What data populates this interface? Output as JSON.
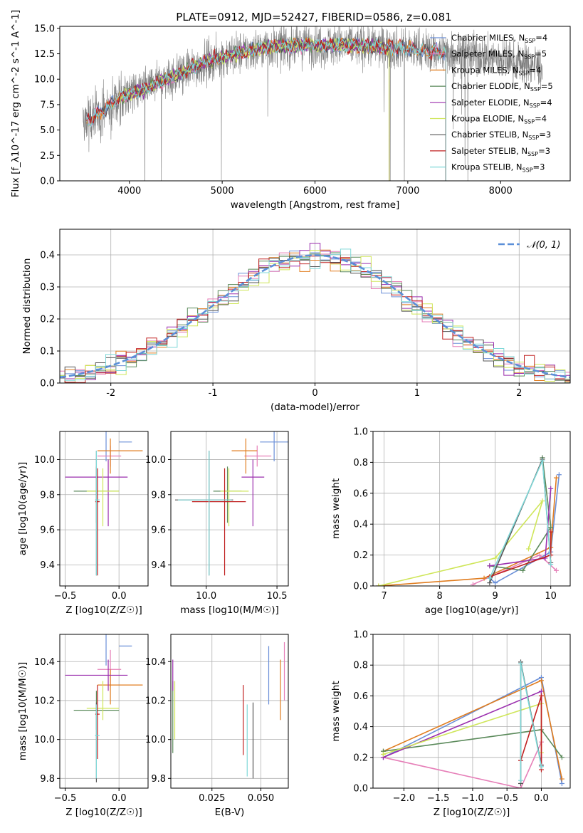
{
  "title": "PLATE=0912, MJD=52427, FIBERID=0586, z=0.081",
  "colors": {
    "chabrier_miles": "#6a8fd8",
    "salpeter_miles": "#e67fb8",
    "kroupa_miles": "#e07c1e",
    "chabrier_elodie": "#5b8a5b",
    "salpeter_elodie": "#9b2fae",
    "kroupa_elodie": "#cfe65a",
    "chabrier_stelib": "#555555",
    "salpeter_stelib": "#c02020",
    "kroupa_stelib": "#7fd8d8",
    "data": "#808080",
    "gauss": "#5b8fd8"
  },
  "chart_data": [
    {
      "id": "spectrum",
      "type": "line",
      "title": "PLATE=0912, MJD=52427, FIBERID=0586, z=0.081",
      "xlabel": "wavelength [Angstrom, rest frame]",
      "ylabel": "Flux [f_λ10^-17 erg cm^-2 s^-1 A^-1]",
      "xlim": [
        3250,
        8750
      ],
      "ylim": [
        0,
        15.2
      ],
      "xticks": [
        "4000",
        "5000",
        "6000",
        "7000",
        "8000"
      ],
      "yticks": [
        "0.0",
        "2.5",
        "5.0",
        "7.5",
        "10.0",
        "12.5",
        "15.0"
      ],
      "legend_position": "top-right",
      "legend": [
        {
          "label": "Chabrier MILES, N_SSP=4",
          "key": "chabrier_miles"
        },
        {
          "label": "Salpeter MILES, N_SSP=5",
          "key": "salpeter_miles"
        },
        {
          "label": "Kroupa MILES, N_SSP=4",
          "key": "kroupa_miles"
        },
        {
          "label": "Chabrier ELODIE, N_SSP=5",
          "key": "chabrier_elodie"
        },
        {
          "label": "Salpeter ELODIE, N_SSP=4",
          "key": "salpeter_elodie"
        },
        {
          "label": "Kroupa ELODIE, N_SSP=4",
          "key": "kroupa_elodie"
        },
        {
          "label": "Chabrier STELIB, N_SSP=3",
          "key": "chabrier_stelib"
        },
        {
          "label": "Salpeter STELIB, N_SSP=3",
          "key": "salpeter_stelib"
        },
        {
          "label": "Kroupa STELIB, N_SSP=3",
          "key": "kroupa_stelib"
        }
      ],
      "data_range": [
        3500,
        8450
      ],
      "continuum": [
        [
          3500,
          5.6
        ],
        [
          3700,
          6.8
        ],
        [
          3900,
          8.2
        ],
        [
          4100,
          8.8
        ],
        [
          4300,
          9.6
        ],
        [
          4500,
          10.4
        ],
        [
          4800,
          11.6
        ],
        [
          5100,
          12.4
        ],
        [
          5500,
          13.2
        ],
        [
          6000,
          13.4
        ],
        [
          6500,
          13.3
        ],
        [
          7000,
          13.0
        ],
        [
          7500,
          12.6
        ],
        [
          8000,
          12.0
        ],
        [
          8450,
          11.2
        ]
      ],
      "model_ranges": {
        "miles": [
          3540,
          7410
        ],
        "elodie": [
          3900,
          6800
        ],
        "stelib": [
          3540,
          7410
        ]
      }
    },
    {
      "id": "residuals",
      "type": "line",
      "xlabel": "(data-model)/error",
      "ylabel": "Normed distribution",
      "xlim": [
        -2.5,
        2.5
      ],
      "ylim": [
        0,
        0.48
      ],
      "xticks": [
        -2,
        -1,
        0,
        1,
        2
      ],
      "yticks": [
        "0.0",
        "0.1",
        "0.2",
        "0.3",
        "0.4"
      ],
      "gauss_label": "𝒩(0, 1)",
      "legend_position": "top-right"
    },
    {
      "id": "age_vs_Z",
      "type": "scatter",
      "xlabel": "Z [log10(Z/Z☉)]",
      "ylabel": "age  [log10(age/yr)]",
      "xlim": [
        -0.55,
        0.27
      ],
      "ylim": [
        9.28,
        10.16
      ],
      "xticks": [
        "−0.5",
        "0.0"
      ],
      "yticks": [
        "9.4",
        "9.6",
        "9.8",
        "10.0"
      ]
    },
    {
      "id": "age_vs_mass",
      "type": "scatter",
      "xlabel": "mass [log10(M/M☉)]",
      "ylabel": "",
      "xlim": [
        9.75,
        10.58
      ],
      "ylim": [
        9.28,
        10.16
      ],
      "xticks": [
        "10.0",
        "10.5"
      ],
      "yticks": [
        "9.4",
        "9.6",
        "9.8",
        "10.0"
      ]
    },
    {
      "id": "weight_vs_age",
      "type": "line",
      "xlabel": "age  [log10(age/yr)]",
      "ylabel": "mass weight",
      "xlim": [
        6.8,
        10.35
      ],
      "ylim": [
        0,
        1.0
      ],
      "xticks": [
        "7",
        "8",
        "9",
        "10"
      ],
      "yticks": [
        "0.0",
        "0.2",
        "0.4",
        "0.6",
        "0.8",
        "1.0"
      ]
    },
    {
      "id": "mass_vs_Z",
      "type": "scatter",
      "xlabel": "Z [log10(Z/Z☉)]",
      "ylabel": "mass [log10(M/M☉)]",
      "xlim": [
        -0.55,
        0.27
      ],
      "ylim": [
        9.75,
        10.54
      ],
      "xticks": [
        "−0.5",
        "0.0"
      ],
      "yticks": [
        "9.8",
        "10.0",
        "10.2",
        "10.4"
      ]
    },
    {
      "id": "mass_vs_ebv",
      "type": "scatter",
      "xlabel": "E(B-V)",
      "ylabel": "",
      "xlim": [
        0.004,
        0.064
      ],
      "ylim": [
        9.75,
        10.54
      ],
      "xticks": [
        "0.025",
        "0.050"
      ],
      "yticks": [
        "9.8",
        "10.0",
        "10.2",
        "10.4"
      ]
    },
    {
      "id": "weight_vs_Z",
      "type": "line",
      "xlabel": "Z [log10(Z/Z☉)]",
      "ylabel": "mass weight",
      "xlim": [
        -2.45,
        0.42
      ],
      "ylim": [
        0,
        1.0
      ],
      "xticks": [
        "−2.0",
        "−1.5",
        "−1.0",
        "−0.5",
        "0.0"
      ],
      "yticks": [
        "0.0",
        "0.2",
        "0.4",
        "0.6",
        "0.8",
        "1.0"
      ]
    }
  ],
  "models": [
    {
      "key": "chabrier_miles",
      "Z": [
        -0.12,
        0.0,
        0.12
      ],
      "age": [
        10.1,
        9.99,
        10.2
      ],
      "mass": [
        10.48,
        10.38,
        10.58
      ],
      "ebv": 0.054,
      "mass_err": [
        10.18,
        10.48
      ],
      "wAge": [
        [
          8.9,
          0.05
        ],
        [
          9.0,
          0.02
        ],
        [
          10.0,
          0.22
        ],
        [
          10.15,
          0.72
        ]
      ],
      "wZ": [
        [
          -2.3,
          0.2
        ],
        [
          0.0,
          0.72
        ],
        [
          0.3,
          0.03
        ]
      ]
    },
    {
      "key": "salpeter_miles",
      "Z": [
        -0.08,
        -0.2,
        0.02
      ],
      "age": [
        10.02,
        9.96,
        10.08
      ],
      "mass": [
        10.36,
        10.27,
        10.46
      ],
      "ebv": 0.062,
      "mass_err": [
        10.2,
        10.5
      ],
      "wAge": [
        [
          8.6,
          0.01
        ],
        [
          9.8,
          0.2
        ],
        [
          10.1,
          0.1
        ]
      ],
      "wZ": [
        [
          -2.3,
          0.2
        ],
        [
          -0.3,
          0.0
        ],
        [
          0.0,
          0.3
        ]
      ]
    },
    {
      "key": "kroupa_miles",
      "Z": [
        -0.08,
        -0.2,
        0.22
      ],
      "age": [
        10.05,
        9.92,
        10.12
      ],
      "mass": [
        10.28,
        10.18,
        10.36
      ],
      "ebv": 0.06,
      "mass_err": [
        10.1,
        10.41
      ],
      "wAge": [
        [
          6.9,
          0.0
        ],
        [
          8.8,
          0.05
        ],
        [
          10.0,
          0.25
        ],
        [
          10.1,
          0.7
        ]
      ],
      "wZ": [
        [
          -2.3,
          0.24
        ],
        [
          0.0,
          0.7
        ],
        [
          0.3,
          0.06
        ]
      ]
    },
    {
      "key": "chabrier_elodie",
      "Z": [
        -0.21,
        -0.42,
        0.0
      ],
      "age": [
        9.82,
        9.64,
        9.96
      ],
      "mass": [
        10.15,
        10.05,
        10.25
      ],
      "ebv": 0.005,
      "mass_err": [
        9.93,
        10.3
      ],
      "wAge": [
        [
          8.9,
          0.13
        ],
        [
          9.5,
          0.1
        ],
        [
          10.0,
          0.38
        ],
        [
          9.85,
          0.83
        ]
      ],
      "wZ": [
        [
          -2.3,
          0.24
        ],
        [
          0.0,
          0.38
        ],
        [
          0.3,
          0.2
        ]
      ]
    },
    {
      "key": "salpeter_elodie",
      "Z": [
        -0.1,
        -0.5,
        0.08
      ],
      "age": [
        9.9,
        9.62,
        10.0
      ],
      "mass": [
        10.33,
        10.25,
        10.41
      ],
      "ebv": 0.005,
      "mass_err": [
        10.25,
        10.41
      ],
      "wAge": [
        [
          8.9,
          0.13
        ],
        [
          9.9,
          0.18
        ],
        [
          10.0,
          0.63
        ]
      ],
      "wZ": [
        [
          -2.3,
          0.2
        ],
        [
          0.0,
          0.63
        ],
        [
          0.0,
          0.15
        ]
      ]
    },
    {
      "key": "kroupa_elodie",
      "Z": [
        -0.15,
        -0.3,
        0.0
      ],
      "age": [
        9.82,
        9.62,
        9.95
      ],
      "mass": [
        10.16,
        10.1,
        10.3
      ],
      "ebv": 0.006,
      "mass_err": [
        10.0,
        10.3
      ],
      "wAge": [
        [
          6.9,
          0.0
        ],
        [
          9.0,
          0.18
        ],
        [
          9.85,
          0.55
        ],
        [
          9.6,
          0.24
        ]
      ],
      "wZ": [
        [
          -2.3,
          0.22
        ],
        [
          0.0,
          0.55
        ],
        [
          0.0,
          0.23
        ]
      ]
    },
    {
      "key": "chabrier_stelib",
      "Z": [
        -0.21,
        -0.22,
        -0.2
      ],
      "age": [
        9.77,
        9.34,
        10.05
      ],
      "mass": [
        10.02,
        9.78,
        10.19
      ],
      "ebv": 0.046,
      "mass_err": [
        9.8,
        10.19
      ],
      "wAge": [
        [
          8.9,
          0.02
        ],
        [
          9.85,
          0.82
        ],
        [
          10.0,
          0.15
        ]
      ],
      "wZ": [
        [
          -0.3,
          0.03
        ],
        [
          -0.3,
          0.82
        ],
        [
          0.0,
          0.15
        ]
      ]
    },
    {
      "key": "salpeter_stelib",
      "Z": [
        -0.2,
        -0.22,
        -0.18
      ],
      "age": [
        9.76,
        9.34,
        9.95
      ],
      "mass": [
        10.13,
        9.9,
        10.28
      ],
      "ebv": 0.041,
      "mass_err": [
        9.92,
        10.28
      ],
      "wAge": [
        [
          8.9,
          0.06
        ],
        [
          10.0,
          0.2
        ],
        [
          10.0,
          0.35
        ]
      ],
      "wZ": [
        [
          -0.3,
          0.18
        ],
        [
          0.0,
          0.6
        ],
        [
          0.0,
          0.12
        ]
      ]
    },
    {
      "key": "kroupa_stelib",
      "Z": [
        -0.21,
        -0.22,
        -0.18
      ],
      "age": [
        9.77,
        9.34,
        10.05
      ],
      "mass": [
        10.02,
        9.8,
        10.18
      ],
      "ebv": 0.043,
      "mass_err": [
        9.81,
        10.18
      ],
      "wAge": [
        [
          8.9,
          0.05
        ],
        [
          9.85,
          0.81
        ],
        [
          10.0,
          0.14
        ]
      ],
      "wZ": [
        [
          -0.3,
          0.05
        ],
        [
          -0.3,
          0.81
        ],
        [
          0.0,
          0.14
        ]
      ]
    }
  ]
}
